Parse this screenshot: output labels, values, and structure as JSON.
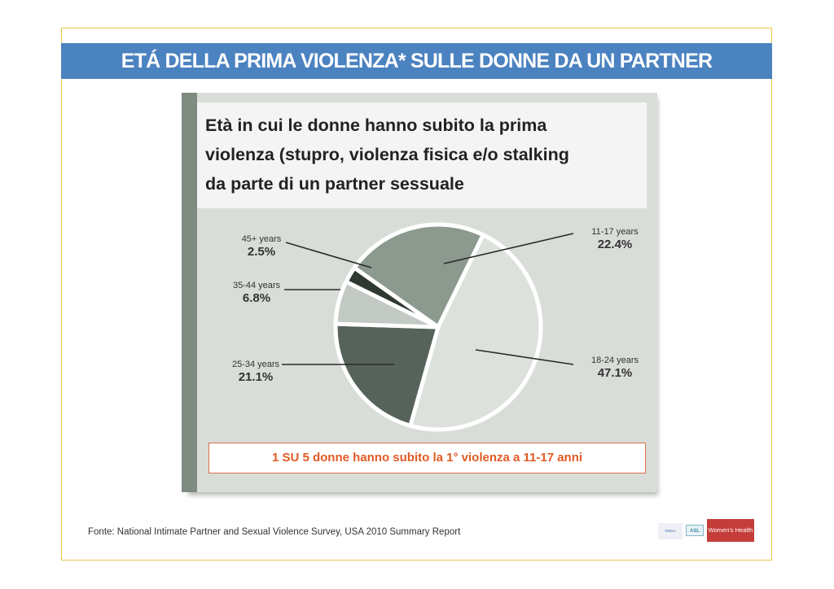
{
  "header": {
    "title": "ETÁ DELLA PRIMA VIOLENZA* SULLE DONNE DA UN PARTNER"
  },
  "panel": {
    "title_lines": [
      "Età in cui le donne hanno subito la prima",
      "violenza (stupro, violenza fisica e/o stalking",
      "da parte di un partner sessuale"
    ],
    "callout": "1 SU 5 donne hanno subito la 1° violenza a 11-17 anni"
  },
  "chart_data": {
    "type": "pie",
    "title": "",
    "slices": [
      {
        "label": "11-17 years",
        "value": 22.4,
        "value_label": "22.4%",
        "color": "#8c998e"
      },
      {
        "label": "18-24 years",
        "value": 47.1,
        "value_label": "47.1%",
        "color": "#dde1dc"
      },
      {
        "label": "25-34 years",
        "value": 21.1,
        "value_label": "21.1%",
        "color": "#56635a"
      },
      {
        "label": "35-44 years",
        "value": 6.8,
        "value_label": "6.8%",
        "color": "#c3c9c3"
      },
      {
        "label": "45+ years",
        "value": 2.5,
        "value_label": "2.5%",
        "color": "#2e3a31"
      }
    ]
  },
  "footer": {
    "source": "Fonte: National Intimate Partner and Sexual Violence Survey, USA 2010 Summary Report"
  },
  "logos": [
    {
      "name": "logo-1",
      "text": "ONDA OSSERVATORIO"
    },
    {
      "name": "logo-2",
      "text": "ASL"
    },
    {
      "name": "logo-3",
      "text": "Women's Health"
    }
  ]
}
